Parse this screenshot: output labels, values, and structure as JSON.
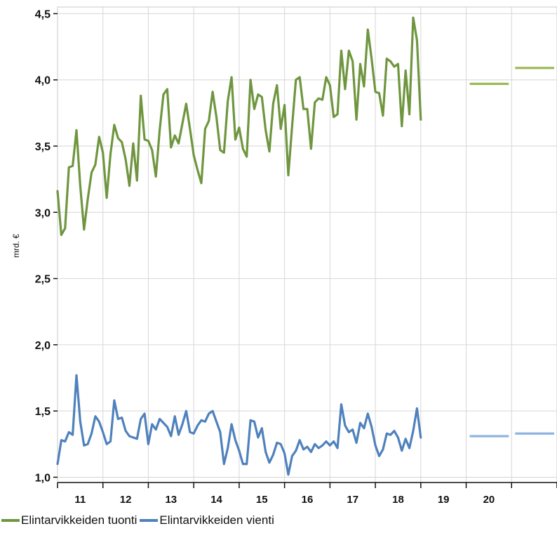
{
  "chart_data": {
    "type": "line",
    "xlabel": "",
    "ylabel": "mrd. €",
    "ylim": [
      0.96,
      4.55
    ],
    "yticks": [
      1.0,
      1.5,
      2.0,
      2.5,
      3.0,
      3.5,
      4.0,
      4.5
    ],
    "ytick_labels": [
      "1,0",
      "1,5",
      "2,0",
      "2,5",
      "3,0",
      "3,5",
      "4,0",
      "4,5"
    ],
    "xlim": [
      2010.0,
      2021.0
    ],
    "xtick_labels": [
      "11",
      "12",
      "13",
      "14",
      "15",
      "16",
      "17",
      "18",
      "19",
      "20"
    ],
    "grid": true,
    "legend_position": "bottom-left",
    "series": [
      {
        "name": "Elintarvikkeiden tuonti",
        "color": "#6f963f",
        "start": 2010.0,
        "step": 0.08333,
        "values": [
          3.16,
          2.83,
          2.88,
          3.34,
          3.35,
          3.62,
          3.2,
          2.87,
          3.1,
          3.3,
          3.36,
          3.57,
          3.45,
          3.11,
          3.44,
          3.66,
          3.56,
          3.53,
          3.4,
          3.2,
          3.52,
          3.24,
          3.88,
          3.55,
          3.54,
          3.47,
          3.27,
          3.62,
          3.89,
          3.93,
          3.49,
          3.58,
          3.52,
          3.67,
          3.82,
          3.63,
          3.43,
          3.32,
          3.22,
          3.63,
          3.69,
          3.91,
          3.72,
          3.47,
          3.45,
          3.84,
          4.02,
          3.55,
          3.64,
          3.48,
          3.42,
          4.0,
          3.78,
          3.89,
          3.87,
          3.62,
          3.46,
          3.82,
          3.96,
          3.63,
          3.81,
          3.28,
          3.65,
          4.0,
          4.02,
          3.78,
          3.78,
          3.48,
          3.83,
          3.86,
          3.85,
          4.02,
          3.96,
          3.72,
          3.74,
          4.22,
          3.93,
          4.22,
          4.14,
          3.7,
          4.12,
          3.95,
          4.38,
          4.16,
          3.91,
          3.9,
          3.73,
          4.16,
          4.14,
          4.1,
          4.12,
          3.65,
          4.07,
          3.74,
          4.47,
          4.3,
          3.7
        ]
      },
      {
        "name": "Elintarvikkeiden vienti",
        "color": "#4f81bd",
        "start": 2010.0,
        "step": 0.08333,
        "values": [
          1.1,
          1.28,
          1.27,
          1.34,
          1.32,
          1.77,
          1.42,
          1.24,
          1.25,
          1.33,
          1.46,
          1.42,
          1.34,
          1.25,
          1.27,
          1.58,
          1.44,
          1.45,
          1.35,
          1.31,
          1.3,
          1.29,
          1.44,
          1.48,
          1.25,
          1.4,
          1.36,
          1.44,
          1.41,
          1.38,
          1.31,
          1.46,
          1.32,
          1.4,
          1.5,
          1.34,
          1.33,
          1.39,
          1.43,
          1.42,
          1.48,
          1.5,
          1.42,
          1.34,
          1.1,
          1.22,
          1.4,
          1.28,
          1.2,
          1.1,
          1.1,
          1.43,
          1.42,
          1.3,
          1.37,
          1.19,
          1.11,
          1.17,
          1.26,
          1.25,
          1.18,
          1.02,
          1.16,
          1.2,
          1.28,
          1.21,
          1.23,
          1.19,
          1.25,
          1.22,
          1.24,
          1.27,
          1.24,
          1.27,
          1.22,
          1.55,
          1.39,
          1.34,
          1.36,
          1.26,
          1.41,
          1.37,
          1.48,
          1.38,
          1.24,
          1.16,
          1.21,
          1.33,
          1.32,
          1.35,
          1.3,
          1.2,
          1.29,
          1.22,
          1.35,
          1.52,
          1.3
        ]
      }
    ],
    "forecasts": [
      {
        "series": "Elintarvikkeiden tuonti",
        "color": "#9bbb59",
        "x": [
          2019.0,
          2020.0
        ],
        "value": 3.97
      },
      {
        "series": "Elintarvikkeiden tuonti",
        "color": "#9bbb59",
        "x": [
          2020.0,
          2021.0
        ],
        "value": 4.09
      },
      {
        "series": "Elintarvikkeiden vienti",
        "color": "#8db3e2",
        "x": [
          2019.0,
          2020.0
        ],
        "value": 1.31
      },
      {
        "series": "Elintarvikkeiden vienti",
        "color": "#8db3e2",
        "x": [
          2020.0,
          2021.0
        ],
        "value": 1.33
      }
    ]
  },
  "legend": [
    {
      "label": "Elintarvikkeiden tuonti",
      "color": "#6f963f"
    },
    {
      "label": "Elintarvikkeiden vienti",
      "color": "#4f81bd"
    }
  ]
}
